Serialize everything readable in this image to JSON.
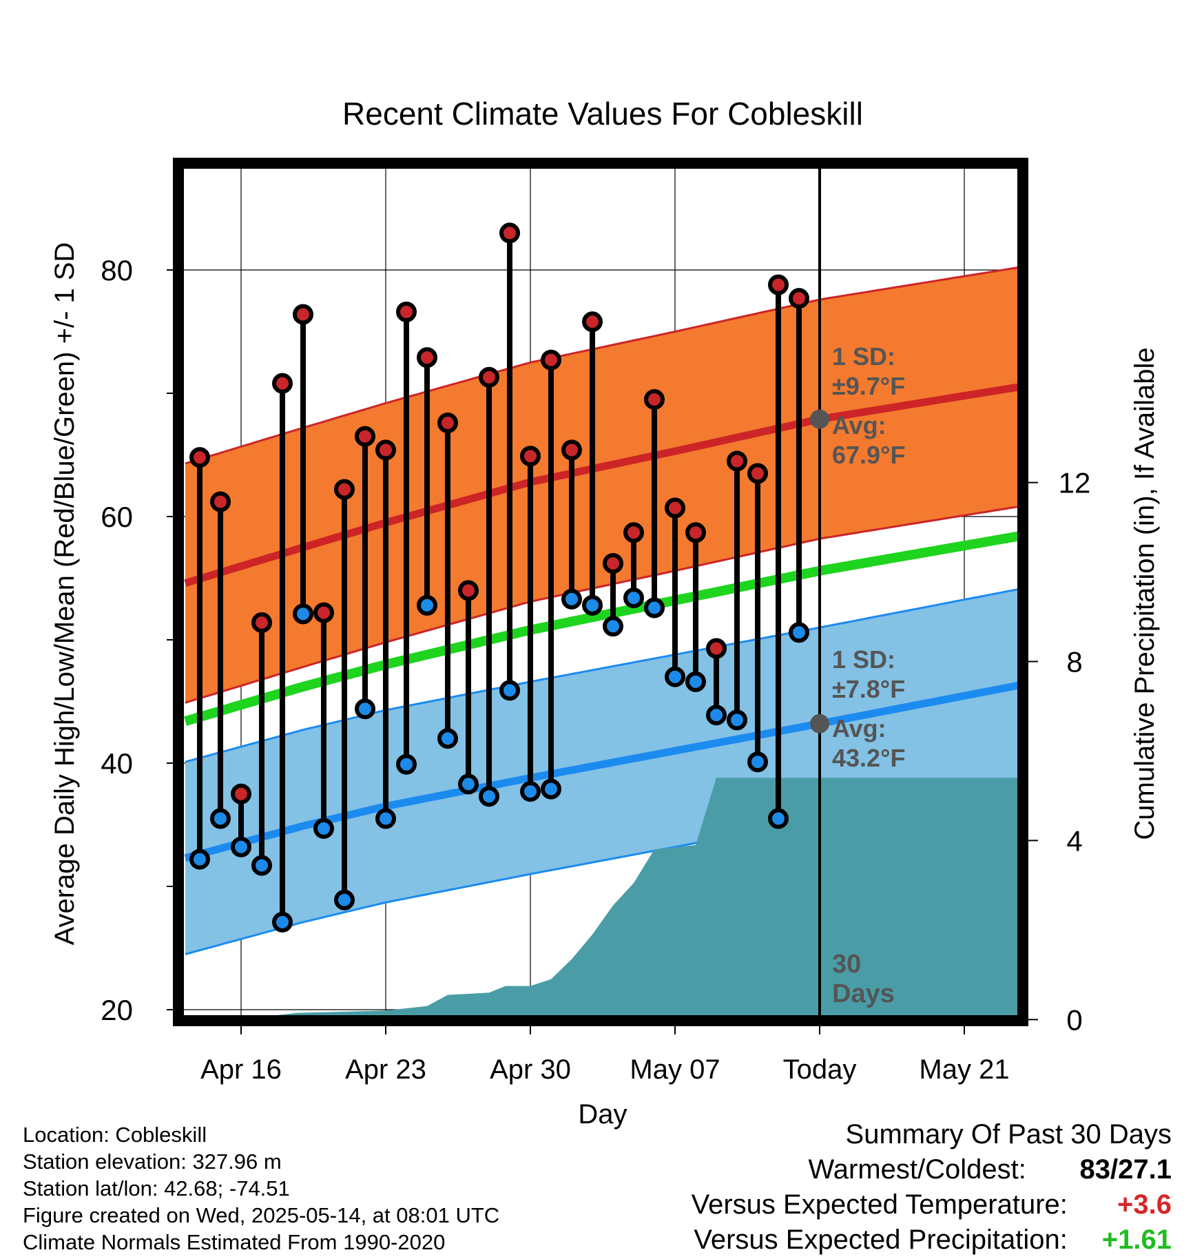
{
  "chart_data": {
    "type": "line",
    "title": "Recent Climate Values For Cobleskill",
    "xlabel": "Day",
    "ylabel_left": "Average Daily High/Low/Mean (Red/Blue/Green) +/- 1 SD",
    "ylabel_right": "Cumulative Precipitation (in), If Available",
    "x_ticks": [
      {
        "day": 0,
        "label": "Apr 16"
      },
      {
        "day": 7,
        "label": "Apr 23"
      },
      {
        "day": 14,
        "label": "Apr 30"
      },
      {
        "day": 21,
        "label": "May 07"
      },
      {
        "day": 28,
        "label": "Today"
      },
      {
        "day": 35,
        "label": "May 21"
      }
    ],
    "xlim": [
      -2.7,
      37.6
    ],
    "ylim": [
      19.8,
      88
    ],
    "y_ticks_left": [
      20,
      40,
      60,
      80
    ],
    "y_ticks_right": [
      0,
      4,
      8,
      12
    ],
    "precip_scale": {
      "y_at_zero": 19.2,
      "deg_per_inch": 3.63
    },
    "today_day": 28,
    "grid": true,
    "normals": {
      "days": [
        -2.7,
        3,
        7,
        14,
        21,
        28,
        37.6
      ],
      "high_mean": [
        54.6,
        57.5,
        59.5,
        62.8,
        65.3,
        67.9,
        70.5
      ],
      "high_sd": 9.7,
      "low_mean": [
        32.3,
        34.9,
        36.5,
        38.8,
        41.0,
        43.2,
        46.3
      ],
      "low_sd": 7.8,
      "daily_mean": [
        43.4,
        46.2,
        48.0,
        50.8,
        53.2,
        55.6,
        58.4
      ]
    },
    "observed": {
      "days": [
        -2,
        -1,
        0,
        1,
        2,
        3,
        4,
        5,
        6,
        7,
        8,
        9,
        10,
        11,
        12,
        13,
        14,
        15,
        16,
        17,
        18,
        19,
        20,
        21,
        22,
        23,
        24,
        25,
        26,
        27
      ],
      "high": [
        64.8,
        61.2,
        37.5,
        51.4,
        70.8,
        76.4,
        52.2,
        62.2,
        66.5,
        65.4,
        76.6,
        72.9,
        67.6,
        54.0,
        71.3,
        83.0,
        64.9,
        72.7,
        65.4,
        75.8,
        56.2,
        58.7,
        69.5,
        60.7,
        58.7,
        49.3,
        64.5,
        63.5,
        78.8,
        77.7
      ],
      "low": [
        32.2,
        35.5,
        33.2,
        31.7,
        27.1,
        52.1,
        34.7,
        28.9,
        44.4,
        35.5,
        39.9,
        52.8,
        42.0,
        38.3,
        37.3,
        45.9,
        37.7,
        37.9,
        53.3,
        52.8,
        51.1,
        53.4,
        52.6,
        47.0,
        46.6,
        43.9,
        43.5,
        40.1,
        35.5,
        50.6
      ]
    },
    "precip_cumulative": {
      "days": [
        -2.7,
        0.8,
        1.8,
        2.7,
        7,
        9,
        10,
        12,
        12.8,
        14,
        15,
        16,
        17,
        18,
        19,
        20,
        21,
        22,
        23,
        24,
        28,
        37.6
      ],
      "inches": [
        0.0,
        0.0,
        0.1,
        0.15,
        0.2,
        0.3,
        0.55,
        0.6,
        0.75,
        0.75,
        0.9,
        1.35,
        1.9,
        2.55,
        3.05,
        3.8,
        3.85,
        3.9,
        5.4,
        5.4,
        5.4,
        5.4
      ]
    },
    "annotations": {
      "high_sd_label": "1 SD:",
      "high_sd_value": "±9.7°F",
      "high_avg_label": "Avg:",
      "high_avg_value": "67.9°F",
      "low_sd_label": "1 SD:",
      "low_sd_value": "±7.8°F",
      "low_avg_label": "Avg:",
      "low_avg_value": "43.2°F",
      "days_line1": "30",
      "days_line2": "Days"
    },
    "colors": {
      "high_band": "#f37a2e",
      "high_line": "#cc2427",
      "low_band": "#83c1e5",
      "low_line": "#1b8bf0",
      "mean_line": "#1ed41e",
      "precip": "#4a9da6",
      "high_dot": "#c8262a",
      "low_dot": "#1c8ae8",
      "marker_gray": "#555555"
    }
  },
  "info": {
    "location": "Location: Cobleskill",
    "elevation": "Station elevation: 327.96 m",
    "latlon": "Station lat/lon: 42.68; -74.51",
    "created": "Figure created on Wed, 2025-05-14, at 08:01 UTC",
    "normals": "Climate Normals Estimated From 1990-2020"
  },
  "summary": {
    "title": "Summary Of Past 30 Days",
    "warmest_label": "Warmest/Coldest:",
    "warmest_value": "83/27.1",
    "temp_label": "Versus Expected Temperature:",
    "temp_value": "+3.6",
    "temp_color": "#d62728",
    "precip_label": "Versus Expected Precipitation:",
    "precip_value": "+1.61",
    "precip_color": "#22bb22"
  }
}
